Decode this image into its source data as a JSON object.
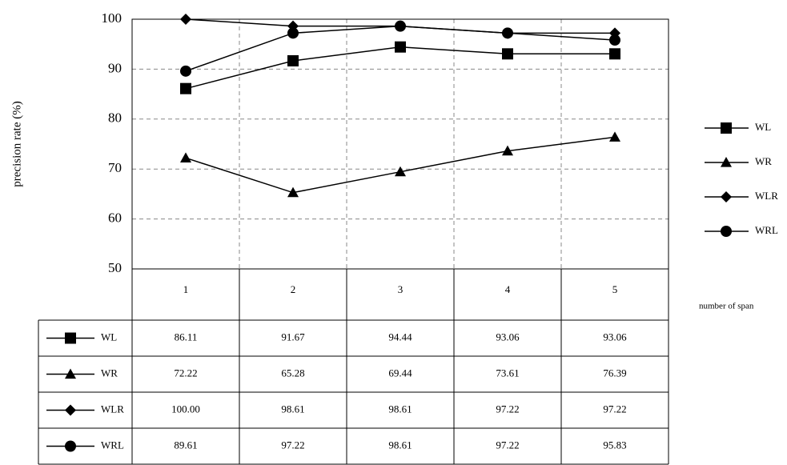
{
  "chart_data": {
    "type": "line",
    "y_label": "precision rate (%)",
    "x_label": "number of span",
    "categories": [
      "1",
      "2",
      "3",
      "4",
      "5"
    ],
    "ylim": [
      50,
      100
    ],
    "yticks": [
      50,
      60,
      70,
      80,
      90,
      100
    ],
    "grid": true,
    "legend": "right",
    "series": [
      {
        "name": "WL",
        "color": "#000000",
        "marker": "square",
        "values": [
          86.11,
          91.67,
          94.44,
          93.06,
          93.06
        ],
        "value_labels": [
          "86.11",
          "91.67",
          "94.44",
          "93.06",
          "93.06"
        ]
      },
      {
        "name": "WR",
        "color": "#000000",
        "marker": "triangle",
        "values": [
          72.22,
          65.28,
          69.44,
          73.61,
          76.39
        ],
        "value_labels": [
          "72.22",
          "65.28",
          "69.44",
          "73.61",
          "76.39"
        ]
      },
      {
        "name": "WLR",
        "color": "#000000",
        "marker": "diamond",
        "values": [
          100,
          98.61,
          98.61,
          97.22,
          97.22
        ],
        "value_labels": [
          "100.00",
          "98.61",
          "98.61",
          "97.22",
          "97.22"
        ]
      },
      {
        "name": "WRL",
        "color": "#000000",
        "marker": "circle",
        "values": [
          89.61,
          97.22,
          98.61,
          97.22,
          95.83
        ],
        "value_labels": [
          "89.61",
          "97.22",
          "98.61",
          "97.22",
          "95.83"
        ]
      }
    ]
  }
}
